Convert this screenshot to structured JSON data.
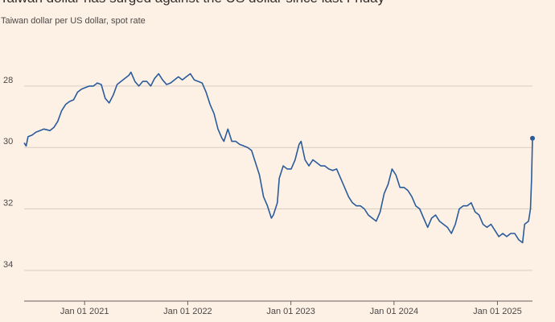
{
  "chart_data": {
    "type": "line",
    "title": "Taiwan dollar has surged against the US dollar since last Friday",
    "subtitle": "Taiwan dollar per US dollar, spot rate",
    "xlabel": "",
    "ylabel": "",
    "y_inverted": true,
    "ylim": [
      35,
      26.3
    ],
    "xlim": [
      "2020-06-01",
      "2025-05-05"
    ],
    "yticks": [
      28,
      30,
      32,
      34
    ],
    "xticks": [
      {
        "date": "2021-01-01",
        "label": "Jan 01 2021"
      },
      {
        "date": "2022-01-01",
        "label": "Jan 01 2022"
      },
      {
        "date": "2023-01-01",
        "label": "Jan 01 2023"
      },
      {
        "date": "2024-01-01",
        "label": "Jan 01 2024"
      },
      {
        "date": "2025-01-01",
        "label": "Jan 01 2025"
      }
    ],
    "grid": true,
    "line_color": "#2b5b9a",
    "series": [
      {
        "points": [
          [
            "2020-06-01",
            29.85
          ],
          [
            "2020-06-08",
            29.95
          ],
          [
            "2020-06-15",
            29.65
          ],
          [
            "2020-06-29",
            29.6
          ],
          [
            "2020-07-13",
            29.5
          ],
          [
            "2020-07-27",
            29.45
          ],
          [
            "2020-08-10",
            29.4
          ],
          [
            "2020-08-31",
            29.45
          ],
          [
            "2020-09-14",
            29.35
          ],
          [
            "2020-09-28",
            29.15
          ],
          [
            "2020-10-12",
            28.8
          ],
          [
            "2020-10-26",
            28.6
          ],
          [
            "2020-11-09",
            28.5
          ],
          [
            "2020-11-23",
            28.45
          ],
          [
            "2020-12-07",
            28.2
          ],
          [
            "2020-12-21",
            28.1
          ],
          [
            "2021-01-04",
            28.05
          ],
          [
            "2021-01-18",
            28.0
          ],
          [
            "2021-02-01",
            28.0
          ],
          [
            "2021-02-15",
            27.9
          ],
          [
            "2021-03-01",
            27.95
          ],
          [
            "2021-03-15",
            28.4
          ],
          [
            "2021-03-29",
            28.55
          ],
          [
            "2021-04-12",
            28.3
          ],
          [
            "2021-04-26",
            27.95
          ],
          [
            "2021-05-10",
            27.85
          ],
          [
            "2021-05-24",
            27.75
          ],
          [
            "2021-06-07",
            27.65
          ],
          [
            "2021-06-14",
            27.55
          ],
          [
            "2021-06-28",
            27.85
          ],
          [
            "2021-07-12",
            28.0
          ],
          [
            "2021-07-26",
            27.85
          ],
          [
            "2021-08-09",
            27.85
          ],
          [
            "2021-08-23",
            28.0
          ],
          [
            "2021-09-06",
            27.75
          ],
          [
            "2021-09-20",
            27.6
          ],
          [
            "2021-10-04",
            27.8
          ],
          [
            "2021-10-18",
            27.95
          ],
          [
            "2021-11-01",
            27.9
          ],
          [
            "2021-11-15",
            27.8
          ],
          [
            "2021-11-29",
            27.7
          ],
          [
            "2021-12-13",
            27.8
          ],
          [
            "2021-12-27",
            27.7
          ],
          [
            "2022-01-10",
            27.6
          ],
          [
            "2022-01-24",
            27.8
          ],
          [
            "2022-02-07",
            27.85
          ],
          [
            "2022-02-21",
            27.9
          ],
          [
            "2022-03-07",
            28.2
          ],
          [
            "2022-03-21",
            28.6
          ],
          [
            "2022-04-04",
            28.9
          ],
          [
            "2022-04-18",
            29.4
          ],
          [
            "2022-05-02",
            29.7
          ],
          [
            "2022-05-09",
            29.8
          ],
          [
            "2022-05-23",
            29.4
          ],
          [
            "2022-06-06",
            29.8
          ],
          [
            "2022-06-20",
            29.8
          ],
          [
            "2022-07-04",
            29.9
          ],
          [
            "2022-07-18",
            29.95
          ],
          [
            "2022-08-01",
            30.0
          ],
          [
            "2022-08-15",
            30.1
          ],
          [
            "2022-08-29",
            30.5
          ],
          [
            "2022-09-12",
            30.9
          ],
          [
            "2022-09-26",
            31.6
          ],
          [
            "2022-10-10",
            31.9
          ],
          [
            "2022-10-24",
            32.3
          ],
          [
            "2022-10-31",
            32.2
          ],
          [
            "2022-11-14",
            31.8
          ],
          [
            "2022-11-21",
            31.0
          ],
          [
            "2022-12-05",
            30.6
          ],
          [
            "2022-12-19",
            30.7
          ],
          [
            "2023-01-02",
            30.7
          ],
          [
            "2023-01-16",
            30.4
          ],
          [
            "2023-01-30",
            29.9
          ],
          [
            "2023-02-06",
            29.8
          ],
          [
            "2023-02-20",
            30.4
          ],
          [
            "2023-03-06",
            30.6
          ],
          [
            "2023-03-20",
            30.4
          ],
          [
            "2023-04-03",
            30.5
          ],
          [
            "2023-04-17",
            30.6
          ],
          [
            "2023-05-01",
            30.6
          ],
          [
            "2023-05-15",
            30.7
          ],
          [
            "2023-05-29",
            30.75
          ],
          [
            "2023-06-12",
            30.7
          ],
          [
            "2023-06-26",
            31.0
          ],
          [
            "2023-07-10",
            31.3
          ],
          [
            "2023-07-24",
            31.6
          ],
          [
            "2023-08-07",
            31.8
          ],
          [
            "2023-08-21",
            31.9
          ],
          [
            "2023-09-04",
            31.9
          ],
          [
            "2023-09-18",
            32.0
          ],
          [
            "2023-10-02",
            32.2
          ],
          [
            "2023-10-16",
            32.3
          ],
          [
            "2023-10-30",
            32.4
          ],
          [
            "2023-11-13",
            32.1
          ],
          [
            "2023-11-27",
            31.5
          ],
          [
            "2023-12-11",
            31.2
          ],
          [
            "2023-12-25",
            30.7
          ],
          [
            "2024-01-08",
            30.9
          ],
          [
            "2024-01-22",
            31.3
          ],
          [
            "2024-02-05",
            31.3
          ],
          [
            "2024-02-19",
            31.4
          ],
          [
            "2024-03-04",
            31.6
          ],
          [
            "2024-03-18",
            31.9
          ],
          [
            "2024-04-01",
            32.0
          ],
          [
            "2024-04-15",
            32.3
          ],
          [
            "2024-04-29",
            32.6
          ],
          [
            "2024-05-13",
            32.3
          ],
          [
            "2024-05-27",
            32.2
          ],
          [
            "2024-06-10",
            32.4
          ],
          [
            "2024-06-24",
            32.5
          ],
          [
            "2024-07-08",
            32.6
          ],
          [
            "2024-07-22",
            32.8
          ],
          [
            "2024-08-05",
            32.5
          ],
          [
            "2024-08-19",
            32.0
          ],
          [
            "2024-09-02",
            31.9
          ],
          [
            "2024-09-16",
            31.9
          ],
          [
            "2024-09-30",
            31.8
          ],
          [
            "2024-10-14",
            32.1
          ],
          [
            "2024-10-28",
            32.2
          ],
          [
            "2024-11-11",
            32.5
          ],
          [
            "2024-11-25",
            32.6
          ],
          [
            "2024-12-09",
            32.5
          ],
          [
            "2024-12-23",
            32.7
          ],
          [
            "2025-01-06",
            32.9
          ],
          [
            "2025-01-20",
            32.8
          ],
          [
            "2025-02-03",
            32.9
          ],
          [
            "2025-02-17",
            32.8
          ],
          [
            "2025-03-03",
            32.8
          ],
          [
            "2025-03-17",
            33.0
          ],
          [
            "2025-03-31",
            33.1
          ],
          [
            "2025-04-07",
            32.5
          ],
          [
            "2025-04-21",
            32.4
          ],
          [
            "2025-04-28",
            32.0
          ],
          [
            "2025-05-02",
            31.0
          ],
          [
            "2025-05-05",
            29.7
          ]
        ]
      }
    ]
  }
}
